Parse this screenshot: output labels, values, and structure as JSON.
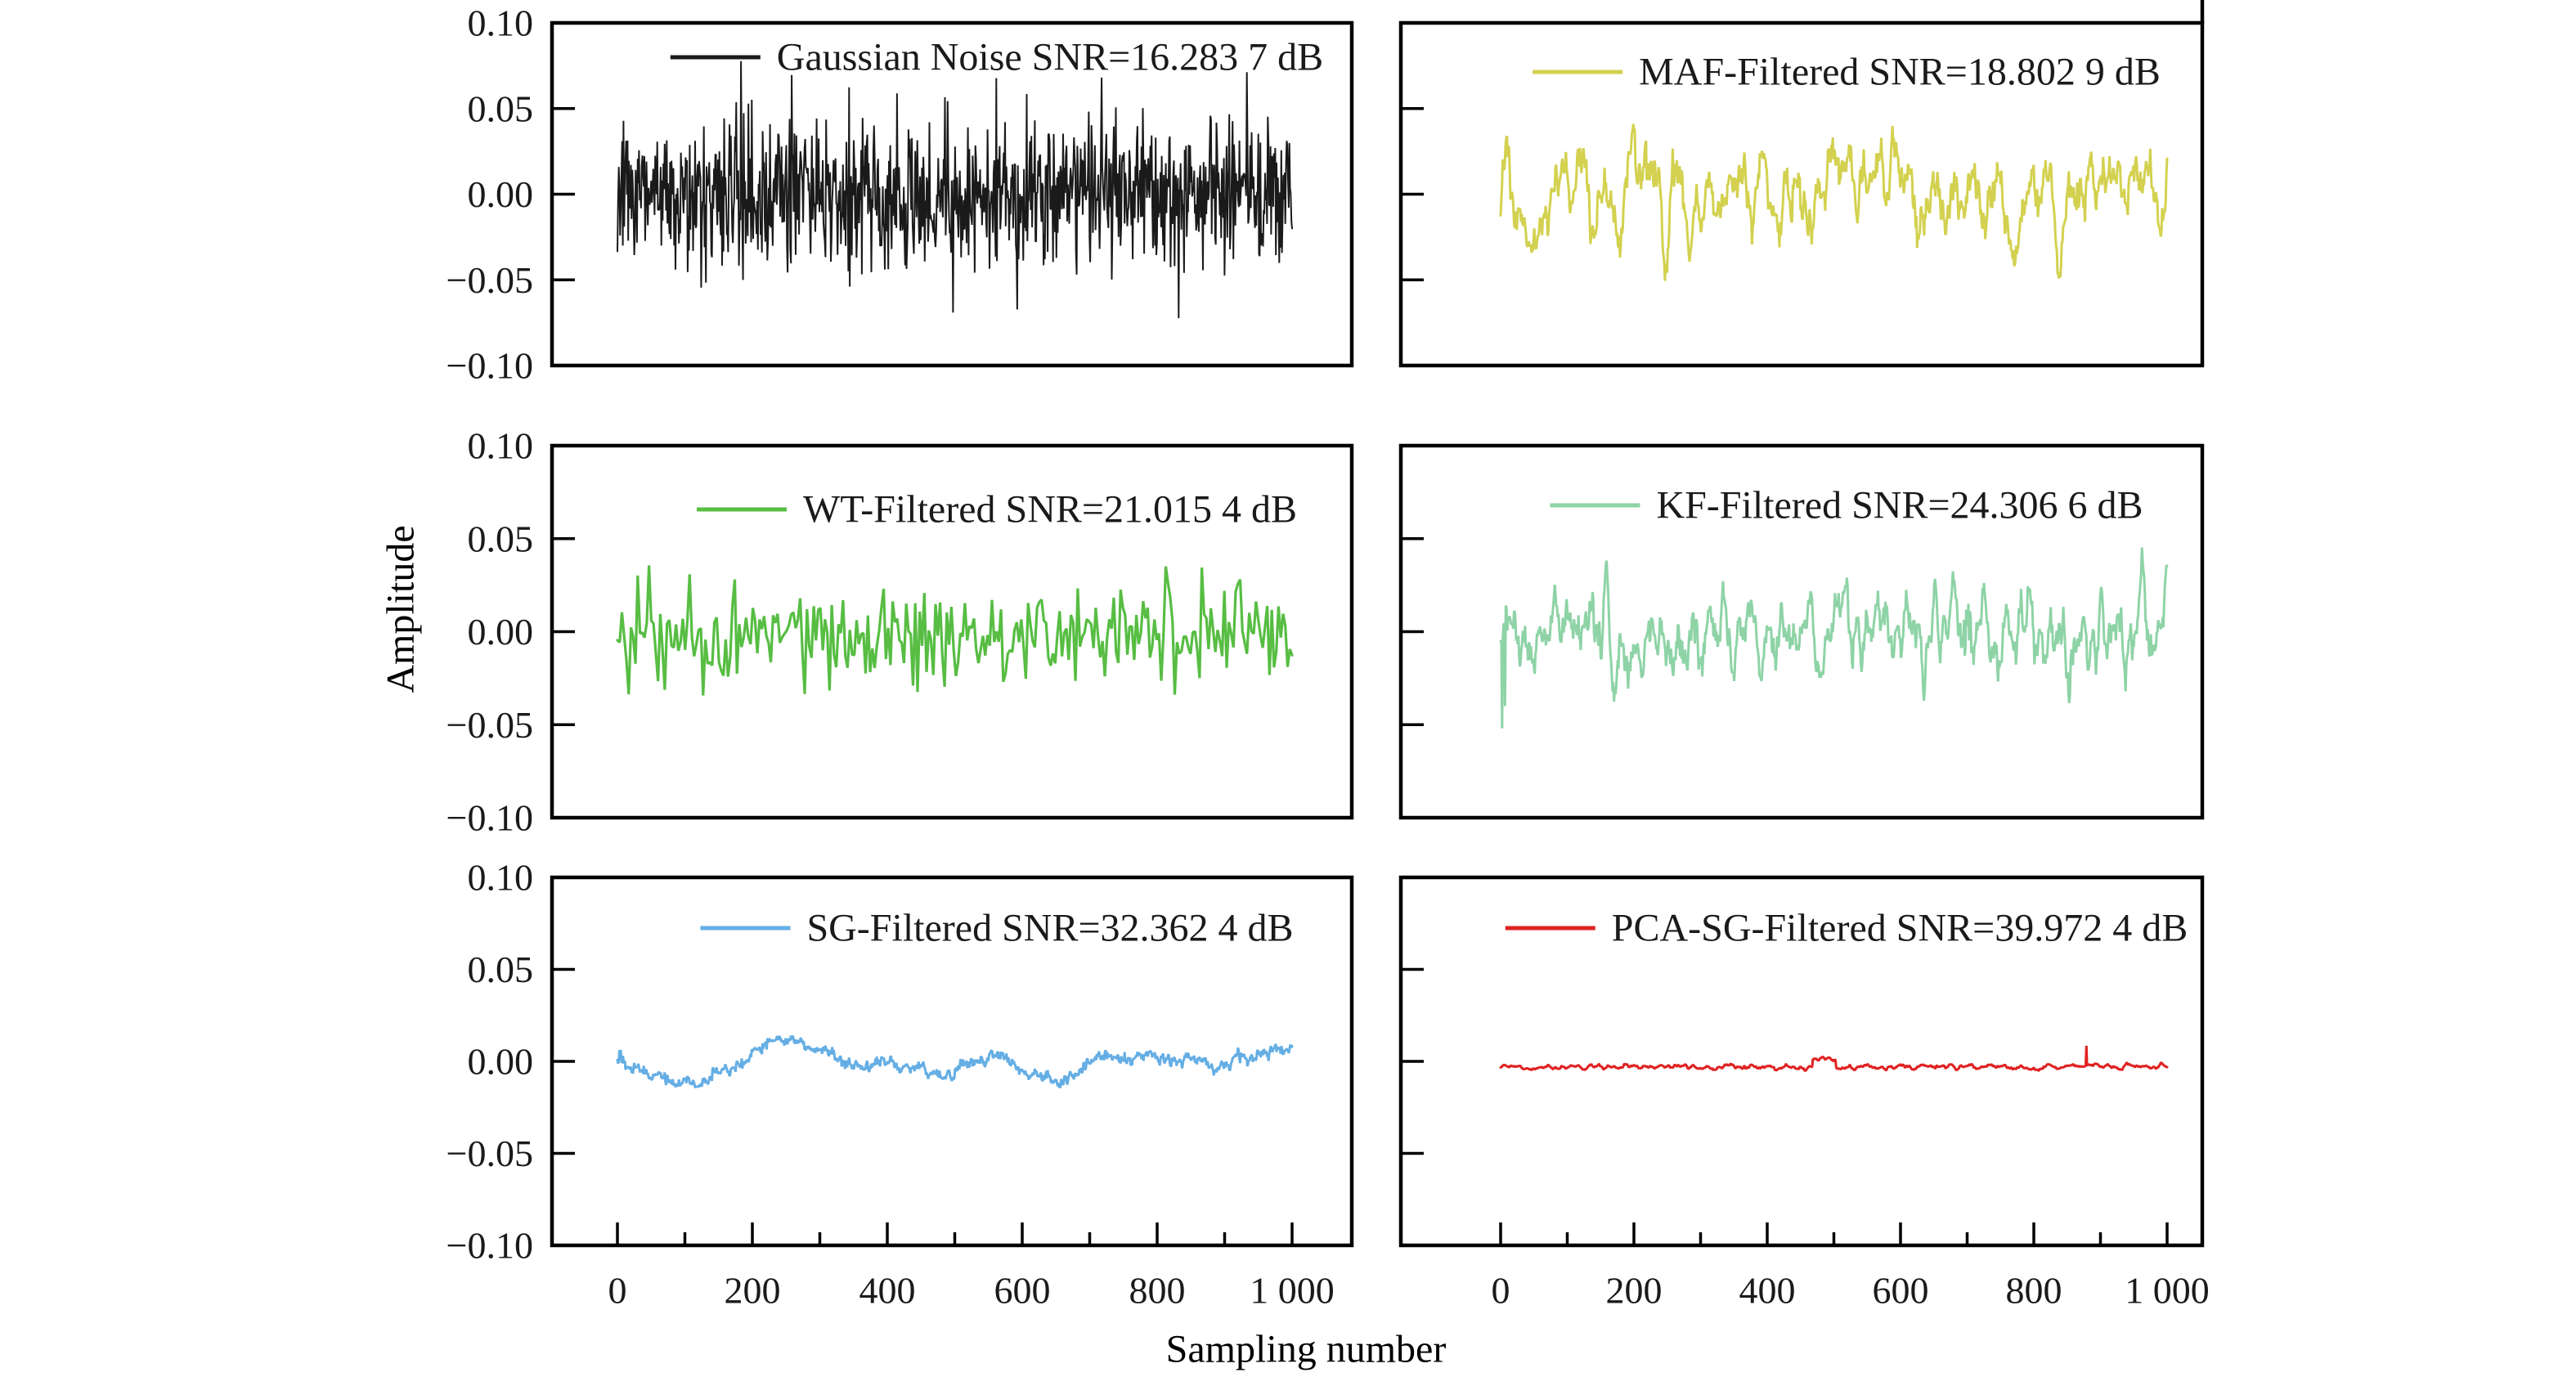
{
  "figure": {
    "background": "#ffffff",
    "frame_color": "#000000",
    "text_color": "#1a1a1a"
  },
  "chart_data": {
    "type": "line",
    "layout": "grid of 6 subplots (3 rows x 2 columns), shared axes labels",
    "title": "",
    "xlabel": "Sampling number",
    "ylabel": "Amplitude",
    "x_range": [
      0,
      1000
    ],
    "y_range": [
      -0.1,
      0.1
    ],
    "x_tick_labels": [
      "0",
      "200",
      "400",
      "600",
      "800",
      "1 000"
    ],
    "x_tick_values": [
      0,
      200,
      400,
      600,
      800,
      1000
    ],
    "y_tick_labels": [
      "0.10",
      "0.05",
      "0.00",
      "−0.05",
      "−0.10"
    ],
    "y_tick_values": [
      0.1,
      0.05,
      0.0,
      -0.05,
      -0.1
    ],
    "grid": false,
    "legend_position": "inside top of each subplot",
    "tick_direction": "in",
    "panels": [
      {
        "id": "gaussian-noise",
        "legend": "Gaussian Noise SNR=16.283 7 dB",
        "series_name": "Gaussian Noise",
        "snr_db": 16.2837,
        "color": "#1a1a1a",
        "signal": {
          "n": 1000,
          "mean": 0.0,
          "approx_std": 0.022,
          "approx_peak": 0.085,
          "character": "dense unfiltered white gaussian noise",
          "sigma": 0.022,
          "smooth": 1,
          "baseline": 0.0,
          "clamp": 0.085,
          "seed": 7,
          "stroke": 2.0,
          "jitter": 0
        }
      },
      {
        "id": "maf-filtered",
        "legend": "MAF-Filtered SNR=18.802 9 dB",
        "series_name": "MAF-Filtered",
        "snr_db": 18.8029,
        "color": "#d3d14f",
        "signal": {
          "n": 950,
          "mean": 0.0,
          "approx_std": 0.016,
          "approx_peak": 0.052,
          "character": "moving-average filtered noise, moderately smooth",
          "sigma": 0.016,
          "smooth": 5,
          "baseline": 0.0,
          "clamp": 0.052,
          "seed": 21,
          "stroke": 3.0,
          "jitter": 0
        }
      },
      {
        "id": "wt-filtered",
        "legend": "WT-Filtered SNR=21.015 4 dB",
        "series_name": "WT-Filtered",
        "snr_db": 21.0154,
        "color": "#57bd43",
        "signal": {
          "n": 300,
          "mean": -0.002,
          "approx_std": 0.0135,
          "approx_peak": 0.05,
          "character": "wavelet-transform filtered, sparse jagged spikes",
          "sigma": 0.0135,
          "smooth": 1,
          "baseline": -0.002,
          "clamp": 0.05,
          "seed": 33,
          "stroke": 3.2,
          "jitter": 0
        }
      },
      {
        "id": "kf-filtered",
        "legend": "KF-Filtered SNR=24.306 6 dB",
        "series_name": "KF-Filtered",
        "snr_db": 24.3066,
        "color": "#8ed3a6",
        "signal": {
          "n": 900,
          "mean": -0.001,
          "approx_std": 0.0125,
          "approx_peak": 0.055,
          "character": "kalman filtered dense noise with initial downward dip",
          "sigma": 0.0125,
          "smooth": 3,
          "baseline": -0.001,
          "clamp": 0.055,
          "seed": 44,
          "stroke": 3.0,
          "jitter": 0,
          "spikes": [
            {
              "i": 2,
              "v": -0.052
            },
            {
              "i": 6,
              "v": -0.04
            }
          ]
        }
      },
      {
        "id": "sg-filtered",
        "legend": "SG-Filtered SNR=32.362 4 dB",
        "series_name": "SG-Filtered",
        "snr_db": 32.3624,
        "color": "#64aee4",
        "signal": {
          "n": 1000,
          "mean": -0.001,
          "approx_std": 0.006,
          "approx_peak": 0.013,
          "character": "savitzky-golay filtered, slow gentle waves with fine jitter",
          "sigma": 0.006,
          "smooth": 45,
          "baseline": -0.001,
          "clamp": 0.014,
          "seed": 55,
          "stroke": 3.0,
          "jitter": 0.0012
        }
      },
      {
        "id": "pca-sg-filtered",
        "legend": "PCA-SG-Filtered SNR=39.972 4 dB",
        "series_name": "PCA-SG-Filtered",
        "snr_db": 39.9724,
        "color": "#e02222",
        "signal": {
          "n": 1000,
          "mean": -0.003,
          "approx_std": 0.0008,
          "approx_peak": 0.0085,
          "character": "nearly flat line slightly below zero, tiny step near x=480 and small spike near x=880",
          "sigma": 0.0008,
          "smooth": 3,
          "baseline": -0.003,
          "clamp": 0.01,
          "seed": 66,
          "stroke": 3.0,
          "jitter": 0,
          "spikes": [
            {
              "i": 878,
              "v": 0.0085
            }
          ],
          "steps": [
            {
              "from": 468,
              "to": 502,
              "dv": 0.0042
            }
          ]
        }
      }
    ]
  }
}
